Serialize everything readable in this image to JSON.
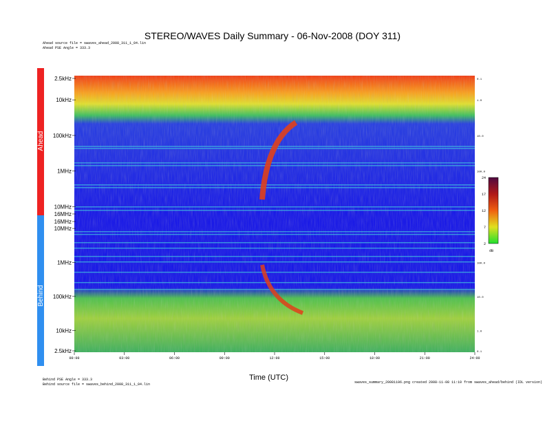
{
  "title": "STEREO/WAVES Daily Summary - 06-Nov-2008 (DOY 311)",
  "header_notes": [
    "Ahead source file = swaves_ahead_2008_311_1_04.lin",
    "Ahead PSE Angle = 333.3"
  ],
  "footer_notes_left": [
    "Behind PSE Angle = 333.3",
    "Behind source file = swaves_behind_2008_311_1_04.lin"
  ],
  "footer_note_right": "swaves_summary_20081106.png created 2008-11-08 11:10 from swaves_ahead/behind (IDL version)",
  "colors": {
    "ahead_bar": "#ee2222",
    "behind_bar": "#2f8ff0",
    "background_blue": "#1a1ae6",
    "radio_burst": "#e0401a"
  },
  "chart_data": {
    "type": "heatmap",
    "xlabel": "Time (UTC)",
    "x_range_hours": [
      0,
      24
    ],
    "x_ticks": [
      "00:00",
      "03:00",
      "06:00",
      "09:00",
      "12:00",
      "15:00",
      "18:00",
      "21:00",
      "24:00"
    ],
    "panels": [
      {
        "name": "Ahead",
        "y_scale": "log, frequency increasing downward",
        "y_ticks": [
          "2.5kHz",
          "10kHz",
          "100kHz",
          "1MHz",
          "10MHz",
          "16MHz"
        ],
        "right_ticks": [
          "0.1",
          "1.0",
          "10.0",
          "100.0"
        ]
      },
      {
        "name": "Behind",
        "y_scale": "log, frequency increasing upward",
        "y_ticks": [
          "16MHz",
          "10MHz",
          "1MHz",
          "100kHz",
          "10kHz",
          "2.5kHz"
        ],
        "right_ticks": [
          "100.0",
          "10.0",
          "1.0",
          "0.1"
        ]
      }
    ],
    "colorbar": {
      "unit": "dB",
      "ticks": [
        "24",
        "17",
        "12",
        "7",
        "2"
      ],
      "range": [
        2,
        24
      ]
    },
    "features": [
      {
        "name": "type III radio burst",
        "start_time_hours": 11.5,
        "description": "drifts from ~10 MHz toward ~100 kHz, seen in both Ahead and Behind"
      }
    ]
  }
}
